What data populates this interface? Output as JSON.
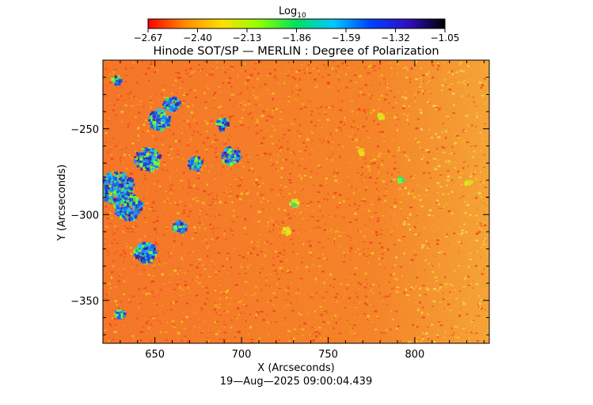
{
  "chart_data": {
    "type": "heatmap",
    "title": "Hinode SOT/SP — MERLIN : Degree of Polarization",
    "colorbar": {
      "label_main": "Log",
      "label_sub": "10",
      "ticks": [
        "−2.67",
        "−2.40",
        "−2.13",
        "−1.86",
        "−1.59",
        "−1.32",
        "−1.05"
      ],
      "range": [
        -2.67,
        -1.05
      ],
      "colors": [
        "#ff0000",
        "#ff8c00",
        "#ffe000",
        "#90ff00",
        "#00e060",
        "#00c8ff",
        "#0040ff",
        "#3010c0",
        "#000000"
      ]
    },
    "xlabel": "X (Arcseconds)",
    "ylabel": "Y (Arcseconds)",
    "xlim": [
      620,
      843
    ],
    "ylim": [
      -375,
      -210
    ],
    "x_ticks": [
      {
        "value": 650,
        "label": "650"
      },
      {
        "value": 700,
        "label": "700"
      },
      {
        "value": 750,
        "label": "750"
      },
      {
        "value": 800,
        "label": "800"
      }
    ],
    "y_ticks": [
      {
        "value": -250,
        "label": "−250"
      },
      {
        "value": -300,
        "label": "−300"
      },
      {
        "value": -350,
        "label": "−350"
      }
    ],
    "timestamp": "19—Aug—2025 09:00:04.439"
  }
}
